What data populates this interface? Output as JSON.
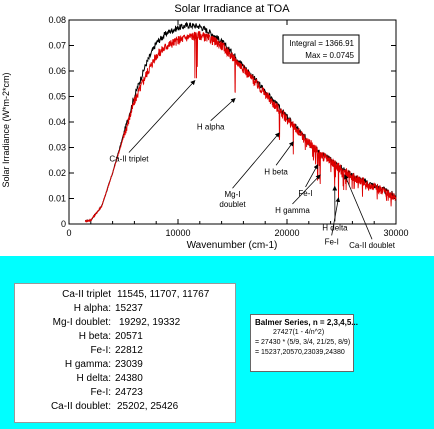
{
  "chart_data": {
    "type": "line",
    "title": "Solar Irradiance at TOA",
    "xlabel": "Wavenumber (cm-1)",
    "ylabel": "Solar Irradiance (W*m-2*cm)",
    "xlim": [
      0,
      30000
    ],
    "ylim": [
      0,
      0.08
    ],
    "x_ticks": [
      0,
      10000,
      20000,
      30000
    ],
    "x_tick_labels": [
      "0",
      "10000",
      "20000",
      "30000"
    ],
    "y_ticks": [
      0,
      0.01,
      0.02,
      0.03,
      0.04,
      0.05,
      0.06,
      0.07,
      0.08
    ],
    "y_tick_labels": [
      "0",
      "0.01",
      "0.02",
      "0.03",
      "0.04",
      "0.05",
      "0.06",
      "0.07",
      "0.08"
    ],
    "grid": false,
    "legend": null,
    "series": [
      {
        "color": "#000000",
        "x": [
          2000,
          3000,
          4000,
          5000,
          6000,
          7000,
          8000,
          9000,
          10000,
          11000,
          12000,
          13000,
          14000,
          15000,
          16000,
          17000,
          18000,
          19000,
          20000,
          21000,
          22000,
          23000,
          24000,
          25000,
          26000,
          27000,
          28000,
          29000,
          30000
        ],
        "y": [
          0.0015,
          0.007,
          0.02,
          0.035,
          0.05,
          0.062,
          0.071,
          0.075,
          0.077,
          0.078,
          0.0775,
          0.075,
          0.0715,
          0.067,
          0.062,
          0.057,
          0.052,
          0.047,
          0.042,
          0.037,
          0.032,
          0.028,
          0.025,
          0.022,
          0.019,
          0.017,
          0.015,
          0.013,
          0.011
        ]
      },
      {
        "color": "#dd0000",
        "x": [
          2000,
          3000,
          4000,
          5000,
          6000,
          7000,
          8000,
          9000,
          10000,
          11000,
          12000,
          13000,
          14000,
          15000,
          16000,
          17000,
          18000,
          19000,
          20000,
          21000,
          22000,
          23000,
          24000,
          25000,
          26000,
          27000,
          28000,
          29000,
          30000
        ],
        "y": [
          0.0015,
          0.007,
          0.02,
          0.034,
          0.048,
          0.058,
          0.066,
          0.07,
          0.072,
          0.0735,
          0.074,
          0.0725,
          0.07,
          0.0655,
          0.061,
          0.056,
          0.051,
          0.046,
          0.041,
          0.0365,
          0.032,
          0.0275,
          0.0245,
          0.0215,
          0.0185,
          0.0165,
          0.0145,
          0.0125,
          0.0105
        ]
      }
    ],
    "absorption_lines": [
      {
        "x": 11545,
        "depth": 0.018
      },
      {
        "x": 11707,
        "depth": 0.015
      },
      {
        "x": 11767,
        "depth": 0.012
      },
      {
        "x": 15237,
        "depth": 0.014
      },
      {
        "x": 19292,
        "depth": 0.01
      },
      {
        "x": 19332,
        "depth": 0.009
      },
      {
        "x": 20571,
        "depth": 0.012
      },
      {
        "x": 22812,
        "depth": 0.011
      },
      {
        "x": 23039,
        "depth": 0.01
      },
      {
        "x": 24380,
        "depth": 0.009
      },
      {
        "x": 24723,
        "depth": 0.008
      },
      {
        "x": 25202,
        "depth": 0.008
      },
      {
        "x": 25426,
        "depth": 0.007
      }
    ],
    "annotations": [
      {
        "text": "Ca-II triplet",
        "target_x": 11545,
        "target_y": 0.057,
        "label_x": 5500,
        "label_y": 0.0245
      },
      {
        "text": "H alpha",
        "target_x": 15237,
        "target_y": 0.05,
        "label_x": 13000,
        "label_y": 0.037
      },
      {
        "text": "Mg-I\ndoublet",
        "target_x": 19292,
        "target_y": 0.0365,
        "label_x": 15000,
        "label_y": 0.0105
      },
      {
        "text": "H beta",
        "target_x": 20571,
        "target_y": 0.033,
        "label_x": 19000,
        "label_y": 0.0195
      },
      {
        "text": "Fe-I",
        "target_x": 22812,
        "target_y": 0.024,
        "label_x": 21700,
        "label_y": 0.011
      },
      {
        "text": "H gamma",
        "target_x": 23039,
        "target_y": 0.02,
        "label_x": 20500,
        "label_y": 0.0043
      },
      {
        "text": "H delta",
        "target_x": 24380,
        "target_y": 0.0155,
        "label_x": 24400,
        "label_y": -0.0025
      },
      {
        "text": "Fe-I",
        "target_x": 24723,
        "target_y": 0.011,
        "label_x": 24100,
        "label_y": -0.008
      },
      {
        "text": "Ca-II doublet",
        "target_x": 25300,
        "target_y": 0.02,
        "label_x": 27800,
        "label_y": -0.0095
      }
    ],
    "info_box": {
      "lines": [
        "Integral = 1366.91",
        "Max = 0.0745"
      ]
    }
  },
  "lines_table": [
    {
      "name": "Ca-II triplet",
      "values": "11545, 11707, 11767"
    },
    {
      "name": "H alpha:",
      "values": "15237"
    },
    {
      "name": "Mg-I doublet:",
      "values": "19292, 19332"
    },
    {
      "name": "H beta:",
      "values": "20571"
    },
    {
      "name": "Fe-I:",
      "values": "22812"
    },
    {
      "name": "H gamma:",
      "values": "23039"
    },
    {
      "name": "H delta:",
      "values": "24380"
    },
    {
      "name": "Fe-I:",
      "values": "24723"
    },
    {
      "name": "Ca-II doublet:",
      "values": "25202, 25426"
    }
  ],
  "balmer_box": {
    "title": "Balmer Series, n = 2,3,4,5...",
    "line1": "27427(1 - 4/n^2)",
    "line2": "= 27430 * (5/9, 3/4, 21/25, 8/9)",
    "line3": "= 15237,20570,23039,24380"
  }
}
